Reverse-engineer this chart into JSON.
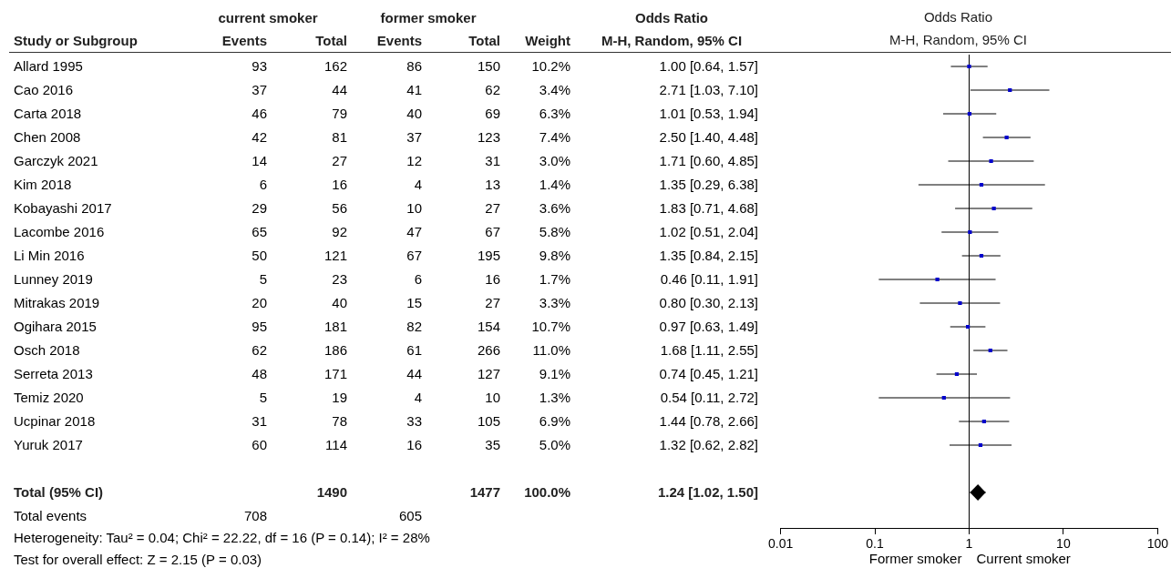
{
  "chart_data": [
    {
      "type": "other",
      "categories": [
        "Study or Subgroup",
        "Events",
        "Total",
        "Events",
        "Total",
        "Weight",
        "M-H, Random, 95% CI"
      ],
      "y_categories": [
        "Allard 1995",
        "Cao 2016",
        "Carta 2018",
        "Chen 2008",
        "Garczyk 2021",
        "Kim 2018",
        "Kobayashi 2017",
        "Lacombe 2016",
        "Li Min 2016",
        "Lunney 2019",
        "Mitrakas 2019",
        "Ogihara 2015",
        "Osch 2018",
        "Serreta 2013",
        "Temiz 2020",
        "Ucpinar 2018",
        "Yuruk 2017",
        null,
        "Total (95% CI)",
        "Total events"
      ],
      "cell_labels": [
        [
          "93",
          "162",
          "86",
          "150",
          "10.2%",
          "1.00 [0.64, 1.57]"
        ],
        [
          "37",
          "44",
          "41",
          "62",
          "3.4%",
          "2.71 [1.03, 7.10]"
        ],
        [
          "46",
          "79",
          "40",
          "69",
          "6.3%",
          "1.01 [0.53, 1.94]"
        ],
        [
          "42",
          "81",
          "37",
          "123",
          "7.4%",
          "2.50 [1.40, 4.48]"
        ],
        [
          "14",
          "27",
          "12",
          "31",
          "3.0%",
          "1.71 [0.60, 4.85]"
        ],
        [
          "6",
          "16",
          "4",
          "13",
          "1.4%",
          "1.35 [0.29, 6.38]"
        ],
        [
          "29",
          "56",
          "10",
          "27",
          "3.6%",
          "1.83 [0.71, 4.68]"
        ],
        [
          "65",
          "92",
          "47",
          "67",
          "5.8%",
          "1.02 [0.51, 2.04]"
        ],
        [
          "50",
          "121",
          "67",
          "195",
          "9.8%",
          "1.35 [0.84, 2.15]"
        ],
        [
          "5",
          "23",
          "6",
          "16",
          "1.7%",
          "0.46 [0.11, 1.91]"
        ],
        [
          "20",
          "40",
          "15",
          "27",
          "3.3%",
          "0.80 [0.30, 2.13]"
        ],
        [
          "95",
          "181",
          "82",
          "154",
          "10.7%",
          "0.97 [0.63, 1.49]"
        ],
        [
          "62",
          "186",
          "61",
          "266",
          "11.0%",
          "1.68 [1.11, 2.55]"
        ],
        [
          "48",
          "171",
          "44",
          "127",
          "9.1%",
          "0.74 [0.45, 1.21]"
        ],
        [
          "5",
          "19",
          "4",
          "10",
          "1.3%",
          "0.54 [0.11, 2.72]"
        ],
        [
          "31",
          "78",
          "33",
          "105",
          "6.9%",
          "1.44 [0.78, 2.66]"
        ],
        [
          "60",
          "114",
          "16",
          "35",
          "5.0%",
          "1.32 [0.62, 2.82]"
        ],
        [
          null,
          null,
          null,
          null,
          null,
          null
        ],
        [
          null,
          "1490",
          null,
          "1477",
          "100.0%",
          "1.24 [1.02, 1.50]"
        ],
        [
          "708",
          null,
          "605",
          null,
          null,
          null
        ]
      ],
      "annotations": [
        "current smoker",
        "former smoker",
        "Odds Ratio",
        "Heterogeneity: Tau² = 0.04; Chi² = 22.22, df = 16 (P = 0.14); I² = 28%",
        "Test for overall effect: Z = 2.15 (P = 0.03)"
      ]
    },
    {
      "type": "scatter",
      "orientation": "horizontal",
      "title": "Odds Ratio",
      "subtitle": "M-H, Random, 95% CI",
      "categories": [
        null,
        null,
        null,
        null,
        null,
        null,
        null,
        null,
        null,
        null,
        null,
        null,
        null,
        null,
        null,
        null,
        null,
        null,
        null,
        null
      ],
      "series": [
        {
          "marker": "square",
          "color": "#0000cc",
          "values": [
            1.0,
            2.71,
            1.01,
            2.5,
            1.71,
            1.35,
            1.83,
            1.02,
            1.35,
            0.46,
            0.8,
            0.97,
            1.68,
            0.74,
            0.54,
            1.44,
            1.32,
            null,
            null,
            null
          ],
          "errors": [
            [
              0.64,
              1.57
            ],
            [
              1.03,
              7.1
            ],
            [
              0.53,
              1.94
            ],
            [
              1.4,
              4.48
            ],
            [
              0.6,
              4.85
            ],
            [
              0.29,
              6.38
            ],
            [
              0.71,
              4.68
            ],
            [
              0.51,
              2.04
            ],
            [
              0.84,
              2.15
            ],
            [
              0.11,
              1.91
            ],
            [
              0.3,
              2.13
            ],
            [
              0.63,
              1.49
            ],
            [
              1.11,
              2.55
            ],
            [
              0.45,
              1.21
            ],
            [
              0.11,
              2.72
            ],
            [
              0.78,
              2.66
            ],
            [
              0.62,
              2.82
            ],
            null,
            null,
            null
          ]
        },
        {
          "marker": "diamond",
          "color": "#000000",
          "values": [
            null,
            null,
            null,
            null,
            null,
            null,
            null,
            null,
            null,
            null,
            null,
            null,
            null,
            null,
            null,
            null,
            null,
            null,
            1.24,
            null
          ],
          "errors": [
            null,
            null,
            null,
            null,
            null,
            null,
            null,
            null,
            null,
            null,
            null,
            null,
            null,
            null,
            null,
            null,
            null,
            null,
            [
              1.02,
              1.5
            ],
            null
          ]
        }
      ],
      "log": "x",
      "xlim": [
        0.01,
        100
      ],
      "xticks": [
        0.01,
        0.1,
        1,
        10,
        100
      ],
      "tick_labels": "x",
      "ref_lines": [
        {
          "axis": "x",
          "value": 1
        }
      ],
      "annotations": [
        "Former smoker",
        "Current smoker"
      ]
    }
  ]
}
